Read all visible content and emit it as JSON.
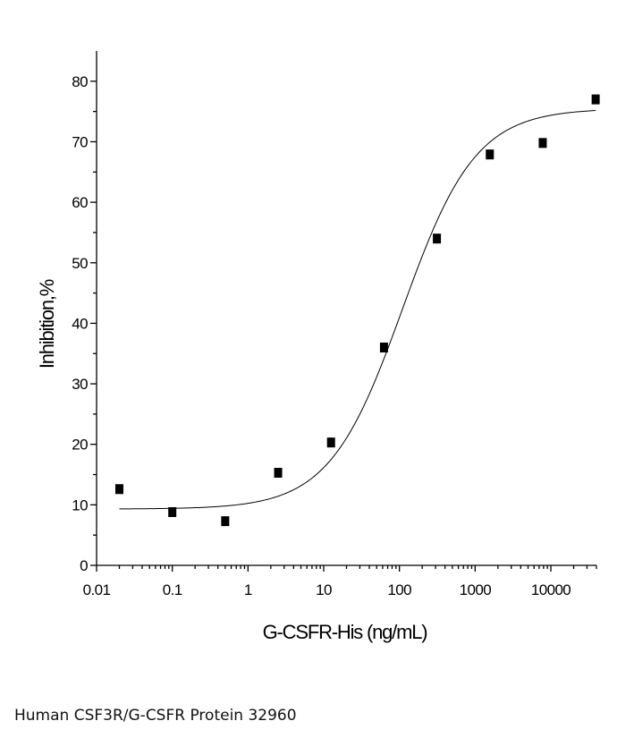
{
  "caption": "Human CSF3R/G-CSFR Protein 32960",
  "chart_data": {
    "type": "scatter",
    "title": "",
    "xlabel": "G-CSFR-His (ng/mL)",
    "ylabel": "Inhibition,%",
    "x_scale": "log",
    "xlim": [
      0.01,
      40000
    ],
    "ylim": [
      0,
      85
    ],
    "x_ticks": [
      0.01,
      0.1,
      1,
      10,
      100,
      1000,
      10000
    ],
    "x_tick_labels": [
      "0.01",
      "0.1",
      "1",
      "10",
      "100",
      "1000",
      "10000"
    ],
    "y_ticks": [
      0,
      10,
      20,
      30,
      40,
      50,
      60,
      70,
      80
    ],
    "y_tick_labels": [
      "0",
      "10",
      "20",
      "30",
      "40",
      "50",
      "60",
      "70",
      "80"
    ],
    "grid": false,
    "legend": "none",
    "series": [
      {
        "marker": "square",
        "x": [
          0.02,
          0.1,
          0.5,
          2.5,
          12.5,
          62.5,
          312.5,
          1562.5,
          7812.5,
          39062.5
        ],
        "y": [
          12.6,
          8.8,
          7.3,
          15.3,
          20.3,
          36.0,
          54.0,
          67.9,
          69.8,
          77.0
        ]
      }
    ],
    "fit": {
      "type": "logistic-4pl",
      "bottom": 9.3,
      "top": 75.5,
      "ec50": 110,
      "hill": 0.9,
      "x_range": [
        0.02,
        39062.5
      ]
    }
  }
}
